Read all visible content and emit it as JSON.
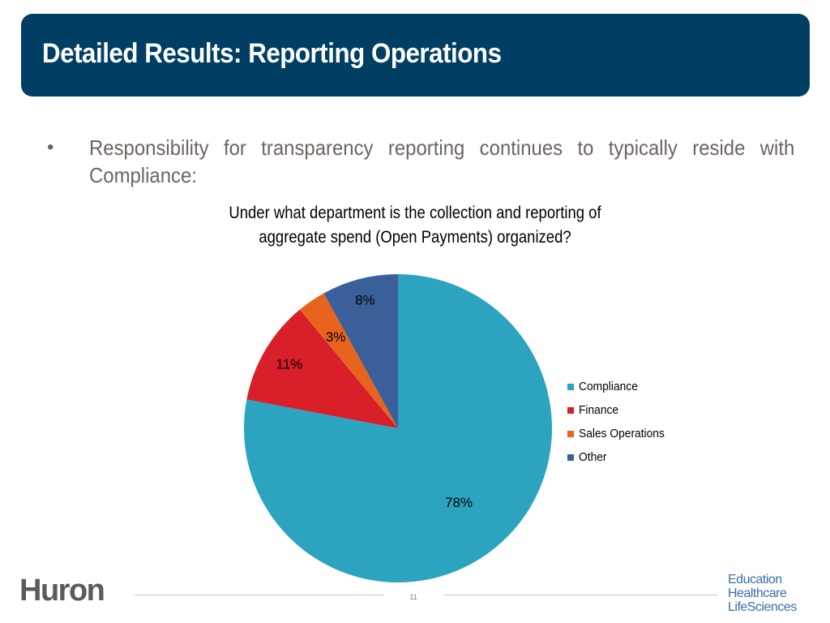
{
  "header": {
    "title": "Detailed Results: Reporting Operations"
  },
  "body": {
    "bullet_symbol": "•",
    "bullet_text": "Responsibility for transparency reporting continues to typically reside with Compliance:"
  },
  "chart_data": {
    "type": "pie",
    "title_line1": "Under what department is the collection and reporting of",
    "title_line2": "aggregate spend (Open Payments) organized?",
    "categories": [
      "Compliance",
      "Finance",
      "Sales Operations",
      "Other"
    ],
    "values": [
      78,
      11,
      3,
      8
    ],
    "labels": [
      "78%",
      "11%",
      "3%",
      "8%"
    ],
    "colors": [
      "#2ca3bf",
      "#d81f2a",
      "#e8641e",
      "#3a5f99"
    ],
    "legend_position": "right"
  },
  "footer": {
    "logo": "Huron",
    "page_number": "11",
    "sectors": [
      "Education",
      "Healthcare",
      "LifeSciences"
    ]
  }
}
